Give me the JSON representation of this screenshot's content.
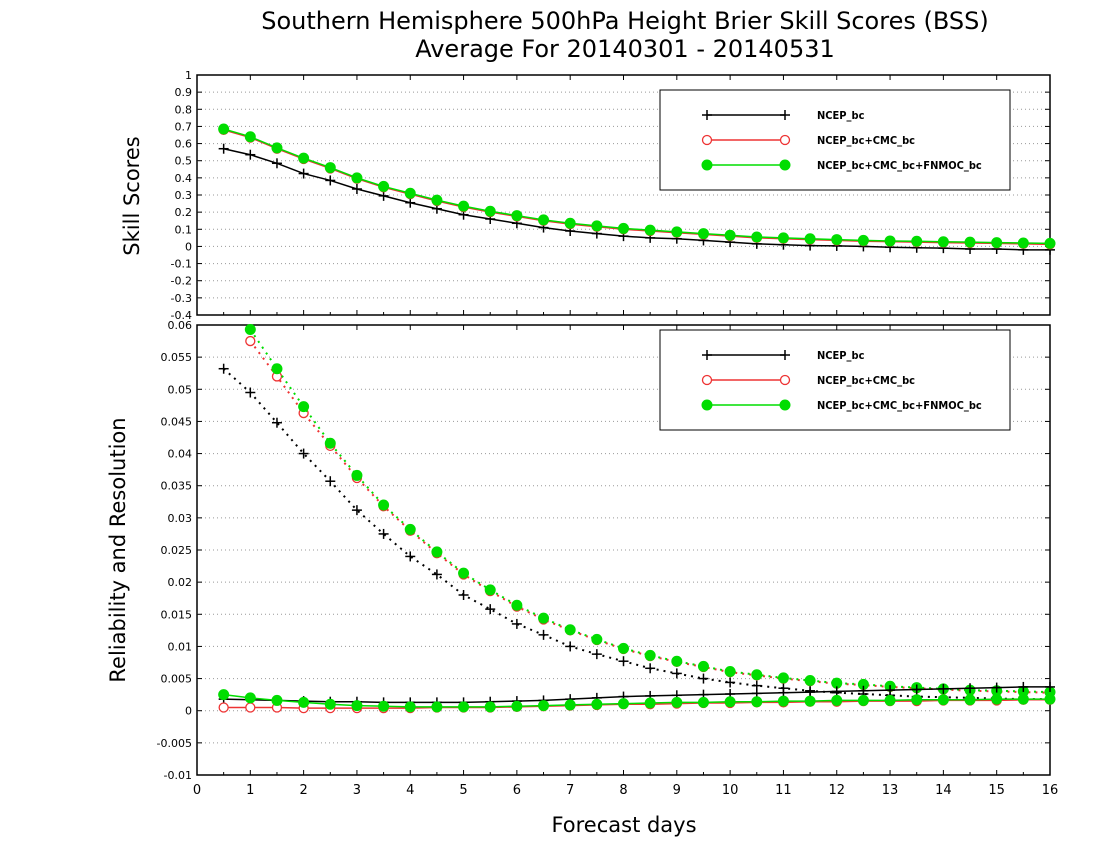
{
  "title_line1": "Southern Hemisphere 500hPa Height Brier Skill Scores (BSS)",
  "title_line2": "Average For 20140301 - 20140531",
  "xlabel": "Forecast days",
  "colors": {
    "ncep": "#000000",
    "cmc": "#ee3333",
    "fnmoc": "#00dd00",
    "grid": "#999999"
  },
  "chart_data": [
    {
      "type": "line",
      "ylabel": "Skill Scores",
      "xlim": [
        0,
        16
      ],
      "ylim": [
        -0.4,
        1
      ],
      "x_ticks": [
        0,
        1,
        2,
        3,
        4,
        5,
        6,
        7,
        8,
        9,
        10,
        11,
        12,
        13,
        14,
        15,
        16
      ],
      "y_ticks": [
        "-0.4",
        "-0.3",
        "-0.2",
        "-0.1",
        "0",
        "0.1",
        "0.2",
        "0.3",
        "0.4",
        "0.5",
        "0.6",
        "0.7",
        "0.8",
        "0.9",
        "1"
      ],
      "grid": "horizontal dotted",
      "legend_position": "top-right",
      "x": [
        0.5,
        1,
        1.5,
        2,
        2.5,
        3,
        3.5,
        4,
        4.5,
        5,
        5.5,
        6,
        6.5,
        7,
        7.5,
        8,
        8.5,
        9,
        9.5,
        10,
        10.5,
        11,
        11.5,
        12,
        12.5,
        13,
        13.5,
        14,
        14.5,
        15,
        15.5,
        16
      ],
      "series": [
        {
          "name": "NCEP_bc",
          "marker": "plus",
          "line": "solid",
          "values": [
            0.57,
            0.535,
            0.485,
            0.425,
            0.385,
            0.335,
            0.295,
            0.255,
            0.22,
            0.185,
            0.16,
            0.135,
            0.11,
            0.09,
            0.075,
            0.06,
            0.05,
            0.045,
            0.035,
            0.025,
            0.015,
            0.01,
            0.005,
            0.003,
            0.0,
            -0.005,
            -0.008,
            -0.01,
            -0.015,
            -0.015,
            -0.02,
            -0.02
          ]
        },
        {
          "name": "NCEP_bc+CMC_bc",
          "marker": "circle-open",
          "line": "solid",
          "values": [
            0.68,
            0.635,
            0.57,
            0.51,
            0.455,
            0.395,
            0.345,
            0.305,
            0.265,
            0.23,
            0.2,
            0.175,
            0.15,
            0.13,
            0.115,
            0.1,
            0.09,
            0.08,
            0.07,
            0.06,
            0.05,
            0.045,
            0.04,
            0.035,
            0.03,
            0.028,
            0.025,
            0.022,
            0.02,
            0.018,
            0.015,
            0.012
          ]
        },
        {
          "name": "NCEP_bc+CMC_bc+FNMOC_bc",
          "marker": "circle-filled",
          "line": "solid",
          "values": [
            0.685,
            0.64,
            0.575,
            0.515,
            0.46,
            0.4,
            0.35,
            0.31,
            0.27,
            0.235,
            0.205,
            0.18,
            0.155,
            0.135,
            0.12,
            0.105,
            0.095,
            0.085,
            0.075,
            0.065,
            0.055,
            0.05,
            0.045,
            0.04,
            0.035,
            0.032,
            0.03,
            0.027,
            0.025,
            0.022,
            0.02,
            0.018
          ]
        }
      ]
    },
    {
      "type": "line",
      "ylabel": "Reliability and Resolution",
      "xlim": [
        0,
        16
      ],
      "ylim": [
        -0.01,
        0.06
      ],
      "x_ticks": [
        0,
        1,
        2,
        3,
        4,
        5,
        6,
        7,
        8,
        9,
        10,
        11,
        12,
        13,
        14,
        15,
        16
      ],
      "y_ticks": [
        "-0.01",
        "-0.005",
        "0",
        "0.005",
        "0.01",
        "0.015",
        "0.02",
        "0.025",
        "0.03",
        "0.035",
        "0.04",
        "0.045",
        "0.05",
        "0.055",
        "0.06"
      ],
      "grid": "horizontal dotted",
      "legend_position": "top-right",
      "x": [
        0.5,
        1,
        1.5,
        2,
        2.5,
        3,
        3.5,
        4,
        4.5,
        5,
        5.5,
        6,
        6.5,
        7,
        7.5,
        8,
        8.5,
        9,
        9.5,
        10,
        10.5,
        11,
        11.5,
        12,
        12.5,
        13,
        13.5,
        14,
        14.5,
        15,
        15.5,
        16
      ],
      "series": [
        {
          "name": "NCEP_bc",
          "group": "resolution",
          "marker": "plus",
          "line": "dotted",
          "values": [
            0.0532,
            0.0495,
            0.0448,
            0.04,
            0.0357,
            0.0312,
            0.0275,
            0.024,
            0.0212,
            0.018,
            0.0158,
            0.0135,
            0.0118,
            0.01,
            0.0088,
            0.0077,
            0.0066,
            0.0058,
            0.005,
            0.0044,
            0.0039,
            0.0035,
            0.0031,
            0.0028,
            0.0026,
            0.0024,
            0.0022,
            0.0021,
            0.002,
            0.0019,
            0.0018,
            0.0018
          ]
        },
        {
          "name": "NCEP_bc+CMC_bc",
          "group": "resolution",
          "marker": "circle-open",
          "line": "dotted",
          "values": [
            null,
            0.0575,
            0.052,
            0.0463,
            0.0412,
            0.0362,
            0.0318,
            0.028,
            0.0245,
            0.0212,
            0.0186,
            0.0162,
            0.0142,
            0.0125,
            0.011,
            0.0096,
            0.0085,
            0.0076,
            0.0068,
            0.006,
            0.0055,
            0.005,
            0.0046,
            0.0042,
            0.004,
            0.0037,
            0.0035,
            0.0033,
            0.0031,
            0.003,
            0.0029,
            0.0028
          ]
        },
        {
          "name": "NCEP_bc+CMC_bc+FNMOC_bc",
          "group": "resolution",
          "marker": "circle-filled",
          "line": "dotted",
          "values": [
            null,
            0.0593,
            0.0532,
            0.0473,
            0.0416,
            0.0366,
            0.032,
            0.0282,
            0.0247,
            0.0214,
            0.0188,
            0.0164,
            0.0144,
            0.0126,
            0.0111,
            0.0097,
            0.0086,
            0.0077,
            0.0069,
            0.0061,
            0.0056,
            0.0051,
            0.0047,
            0.0043,
            0.0041,
            0.0038,
            0.0036,
            0.0034,
            0.0032,
            0.0031,
            0.003,
            0.0029
          ]
        },
        {
          "name": "NCEP_bc",
          "group": "reliability",
          "marker": "plus",
          "line": "solid",
          "values": [
            0.0018,
            0.0017,
            0.0016,
            0.0015,
            0.0014,
            0.0014,
            0.0013,
            0.0013,
            0.0013,
            0.0013,
            0.0014,
            0.0015,
            0.0016,
            0.0018,
            0.002,
            0.0022,
            0.0023,
            0.0024,
            0.0025,
            0.0026,
            0.0027,
            0.0028,
            0.0029,
            0.003,
            0.0031,
            0.0032,
            0.0033,
            0.0034,
            0.0035,
            0.0036,
            0.0037,
            0.0037
          ]
        },
        {
          "name": "NCEP_bc+CMC_bc",
          "group": "reliability",
          "marker": "circle-open",
          "line": "solid",
          "values": [
            0.0005,
            0.0005,
            0.0005,
            0.0004,
            0.0004,
            0.0004,
            0.0004,
            0.0004,
            0.0005,
            0.0005,
            0.0005,
            0.0006,
            0.0007,
            0.0008,
            0.0009,
            0.001,
            0.001,
            0.0011,
            0.0012,
            0.0012,
            0.0013,
            0.0013,
            0.0014,
            0.0014,
            0.0015,
            0.0015,
            0.0015,
            0.0016,
            0.0016,
            0.0016,
            0.0017,
            0.0017
          ]
        },
        {
          "name": "NCEP_bc+CMC_bc+FNMOC_bc",
          "group": "reliability",
          "marker": "circle-filled",
          "line": "solid",
          "values": [
            0.0025,
            0.002,
            0.0016,
            0.0013,
            0.001,
            0.0008,
            0.0007,
            0.0006,
            0.0006,
            0.0006,
            0.0006,
            0.0007,
            0.0008,
            0.0009,
            0.001,
            0.0011,
            0.0012,
            0.0013,
            0.0013,
            0.0014,
            0.0014,
            0.0015,
            0.0015,
            0.0016,
            0.0016,
            0.0016,
            0.0017,
            0.0017,
            0.0017,
            0.0018,
            0.0018,
            0.0018
          ]
        }
      ]
    }
  ],
  "legends": [
    {
      "items": [
        {
          "label": "NCEP_bc",
          "marker": "plus",
          "color_key": "ncep"
        },
        {
          "label": "NCEP_bc+CMC_bc",
          "marker": "circle-open",
          "color_key": "cmc"
        },
        {
          "label": "NCEP_bc+CMC_bc+FNMOC_bc",
          "marker": "circle-filled",
          "color_key": "fnmoc"
        }
      ]
    },
    {
      "items": [
        {
          "label": "NCEP_bc",
          "marker": "plus",
          "color_key": "ncep"
        },
        {
          "label": "NCEP_bc+CMC_bc",
          "marker": "circle-open",
          "color_key": "cmc"
        },
        {
          "label": "NCEP_bc+CMC_bc+FNMOC_bc",
          "marker": "circle-filled",
          "color_key": "fnmoc"
        }
      ]
    }
  ]
}
